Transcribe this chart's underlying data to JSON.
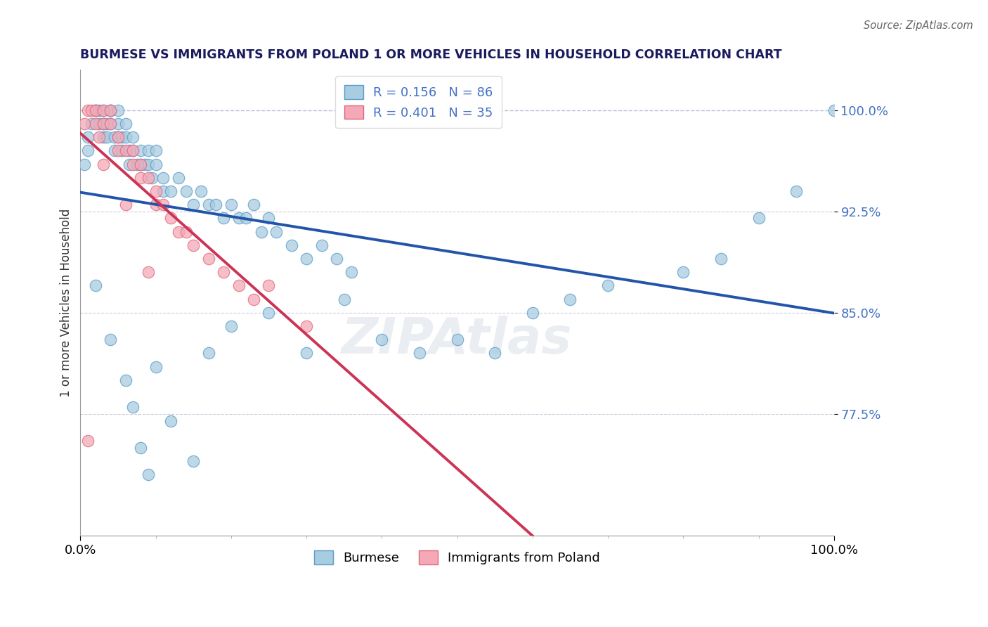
{
  "title": "BURMESE VS IMMIGRANTS FROM POLAND 1 OR MORE VEHICLES IN HOUSEHOLD CORRELATION CHART",
  "source": "Source: ZipAtlas.com",
  "ylabel": "1 or more Vehicles in Household",
  "ytick_vals": [
    0.775,
    0.85,
    0.925,
    1.0
  ],
  "ytick_labels": [
    "77.5%",
    "85.0%",
    "92.5%",
    "100.0%"
  ],
  "xlim": [
    0.0,
    1.0
  ],
  "ylim": [
    0.685,
    1.03
  ],
  "burmese_color": "#a8cce0",
  "burmese_edge": "#5b9dc9",
  "poland_color": "#f4a8b8",
  "poland_edge": "#e06878",
  "burmese_R": 0.156,
  "burmese_N": 86,
  "poland_R": 0.401,
  "poland_N": 35,
  "legend_label_burmese": "Burmese",
  "legend_label_poland": "Immigrants from Poland",
  "watermark": "ZIPAtlas",
  "trend_blue_color": "#2255aa",
  "trend_pink_color": "#cc3355",
  "ytick_color": "#4472c4",
  "title_color": "#1a1a5e",
  "hline_color": "#aaaacc",
  "burmese_x": [
    0.005,
    0.01,
    0.01,
    0.015,
    0.02,
    0.02,
    0.025,
    0.025,
    0.03,
    0.03,
    0.03,
    0.035,
    0.035,
    0.04,
    0.04,
    0.04,
    0.045,
    0.045,
    0.05,
    0.05,
    0.05,
    0.055,
    0.055,
    0.06,
    0.06,
    0.065,
    0.065,
    0.07,
    0.07,
    0.075,
    0.08,
    0.08,
    0.085,
    0.09,
    0.09,
    0.095,
    0.1,
    0.1,
    0.11,
    0.11,
    0.12,
    0.13,
    0.14,
    0.15,
    0.16,
    0.17,
    0.18,
    0.19,
    0.2,
    0.21,
    0.22,
    0.23,
    0.24,
    0.25,
    0.26,
    0.28,
    0.3,
    0.32,
    0.34,
    0.36,
    0.02,
    0.04,
    0.06,
    0.07,
    0.08,
    0.09,
    0.1,
    0.12,
    0.15,
    0.17,
    0.2,
    0.25,
    0.3,
    0.4,
    0.5,
    0.55,
    0.6,
    0.65,
    0.7,
    0.8,
    0.85,
    0.9,
    0.95,
    1.0,
    0.35,
    0.45
  ],
  "burmese_y": [
    0.96,
    0.97,
    0.98,
    0.99,
    1.0,
    1.0,
    1.0,
    0.99,
    1.0,
    0.99,
    0.98,
    0.99,
    0.98,
    1.0,
    1.0,
    0.99,
    0.98,
    0.97,
    1.0,
    0.99,
    0.98,
    0.98,
    0.97,
    0.99,
    0.98,
    0.97,
    0.96,
    0.98,
    0.97,
    0.96,
    0.97,
    0.96,
    0.96,
    0.97,
    0.96,
    0.95,
    0.97,
    0.96,
    0.95,
    0.94,
    0.94,
    0.95,
    0.94,
    0.93,
    0.94,
    0.93,
    0.93,
    0.92,
    0.93,
    0.92,
    0.92,
    0.93,
    0.91,
    0.92,
    0.91,
    0.9,
    0.89,
    0.9,
    0.89,
    0.88,
    0.87,
    0.83,
    0.8,
    0.78,
    0.75,
    0.73,
    0.81,
    0.77,
    0.74,
    0.82,
    0.84,
    0.85,
    0.82,
    0.83,
    0.83,
    0.82,
    0.85,
    0.86,
    0.87,
    0.88,
    0.89,
    0.92,
    0.94,
    1.0,
    0.86,
    0.82
  ],
  "poland_x": [
    0.005,
    0.01,
    0.015,
    0.02,
    0.02,
    0.025,
    0.03,
    0.03,
    0.04,
    0.04,
    0.05,
    0.05,
    0.06,
    0.07,
    0.07,
    0.08,
    0.08,
    0.09,
    0.1,
    0.1,
    0.11,
    0.12,
    0.13,
    0.14,
    0.15,
    0.17,
    0.19,
    0.21,
    0.23,
    0.25,
    0.01,
    0.03,
    0.06,
    0.09,
    0.3
  ],
  "poland_y": [
    0.99,
    1.0,
    1.0,
    1.0,
    0.99,
    0.98,
    1.0,
    0.99,
    1.0,
    0.99,
    0.98,
    0.97,
    0.97,
    0.97,
    0.96,
    0.96,
    0.95,
    0.95,
    0.94,
    0.93,
    0.93,
    0.92,
    0.91,
    0.91,
    0.9,
    0.89,
    0.88,
    0.87,
    0.86,
    0.87,
    0.755,
    0.96,
    0.93,
    0.88,
    0.84
  ]
}
